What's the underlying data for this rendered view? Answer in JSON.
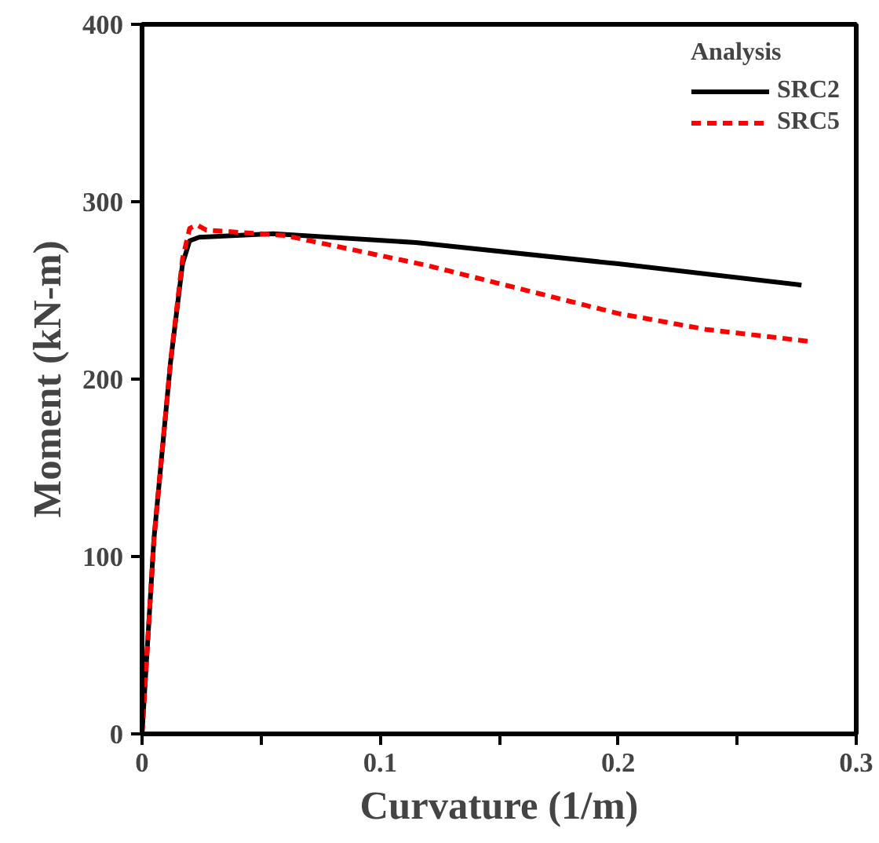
{
  "chart_data": {
    "type": "line",
    "xlabel": "Curvature (1/m)",
    "ylabel": "Moment (kN-m)",
    "legend_title": "Analysis",
    "xlim": [
      0,
      0.3
    ],
    "ylim": [
      0,
      400
    ],
    "xticks": [
      0,
      {
        "value": 0.05,
        "label": null
      },
      0.1,
      {
        "value": 0.15,
        "label": null
      },
      0.2,
      {
        "value": 0.25,
        "label": null
      },
      0.3
    ],
    "yticks": [
      0,
      100,
      200,
      300,
      400
    ],
    "grid": false,
    "legend": "top right",
    "marker": "none",
    "series": [
      {
        "name": "SRC2",
        "color": "#000000",
        "line_style": "solid",
        "x": [
          0,
          0.005,
          0.012,
          0.017,
          0.02,
          0.024,
          0.055,
          0.115,
          0.2,
          0.277
        ],
        "values": [
          0,
          110,
          210,
          265,
          278,
          280,
          282,
          277,
          265,
          253
        ]
      },
      {
        "name": "SRC5",
        "color": "#ff0000",
        "line_style": "dashed",
        "x": [
          0,
          0.005,
          0.012,
          0.017,
          0.02,
          0.023,
          0.027,
          0.06,
          0.12,
          0.2,
          0.237,
          0.282
        ],
        "values": [
          0,
          110,
          210,
          268,
          285,
          287,
          284,
          281,
          264,
          237,
          228,
          221
        ]
      }
    ]
  }
}
